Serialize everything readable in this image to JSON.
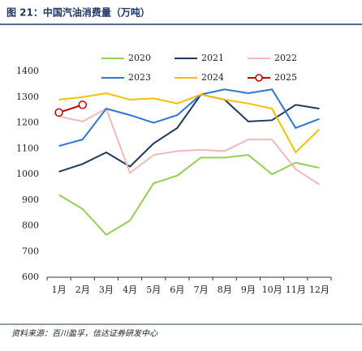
{
  "chart_data": {
    "type": "line",
    "title": "图 21：中国汽油消费量（万吨）",
    "source": "资料来源：百川盈孚，信达证券研发中心",
    "categories": [
      "1月",
      "2月",
      "3月",
      "4月",
      "5月",
      "6月",
      "7月",
      "8月",
      "9月",
      "10月",
      "11月",
      "12月"
    ],
    "series": [
      {
        "name": "2020",
        "color": "#92d050",
        "values": [
          920,
          865,
          765,
          820,
          965,
          995,
          1065,
          1065,
          1075,
          1000,
          1045,
          1025
        ]
      },
      {
        "name": "2021",
        "color": "#1f3864",
        "values": [
          1010,
          1040,
          1085,
          1030,
          1120,
          1180,
          1310,
          1290,
          1205,
          1210,
          1270,
          1255
        ]
      },
      {
        "name": "2022",
        "color": "#f4b8b8",
        "values": [
          1225,
          1205,
          1255,
          1005,
          1075,
          1090,
          1095,
          1090,
          1135,
          1135,
          1020,
          960
        ]
      },
      {
        "name": "2023",
        "color": "#2e75d6",
        "values": [
          1110,
          1135,
          1255,
          1230,
          1200,
          1230,
          1310,
          1330,
          1315,
          1330,
          1180,
          1215
        ]
      },
      {
        "name": "2024",
        "color": "#f5c000",
        "values": [
          1290,
          1300,
          1315,
          1290,
          1295,
          1275,
          1310,
          1290,
          1275,
          1255,
          1085,
          1175
        ]
      },
      {
        "name": "2025",
        "color": "#c00000",
        "marker": "circle",
        "values": [
          1240,
          1270,
          null,
          null,
          null,
          null,
          null,
          null,
          null,
          null,
          null,
          null
        ]
      }
    ],
    "ylim": [
      600,
      1400
    ],
    "yticks": [
      600,
      700,
      800,
      900,
      1000,
      1100,
      1200,
      1300,
      1400
    ],
    "grid": false
  }
}
